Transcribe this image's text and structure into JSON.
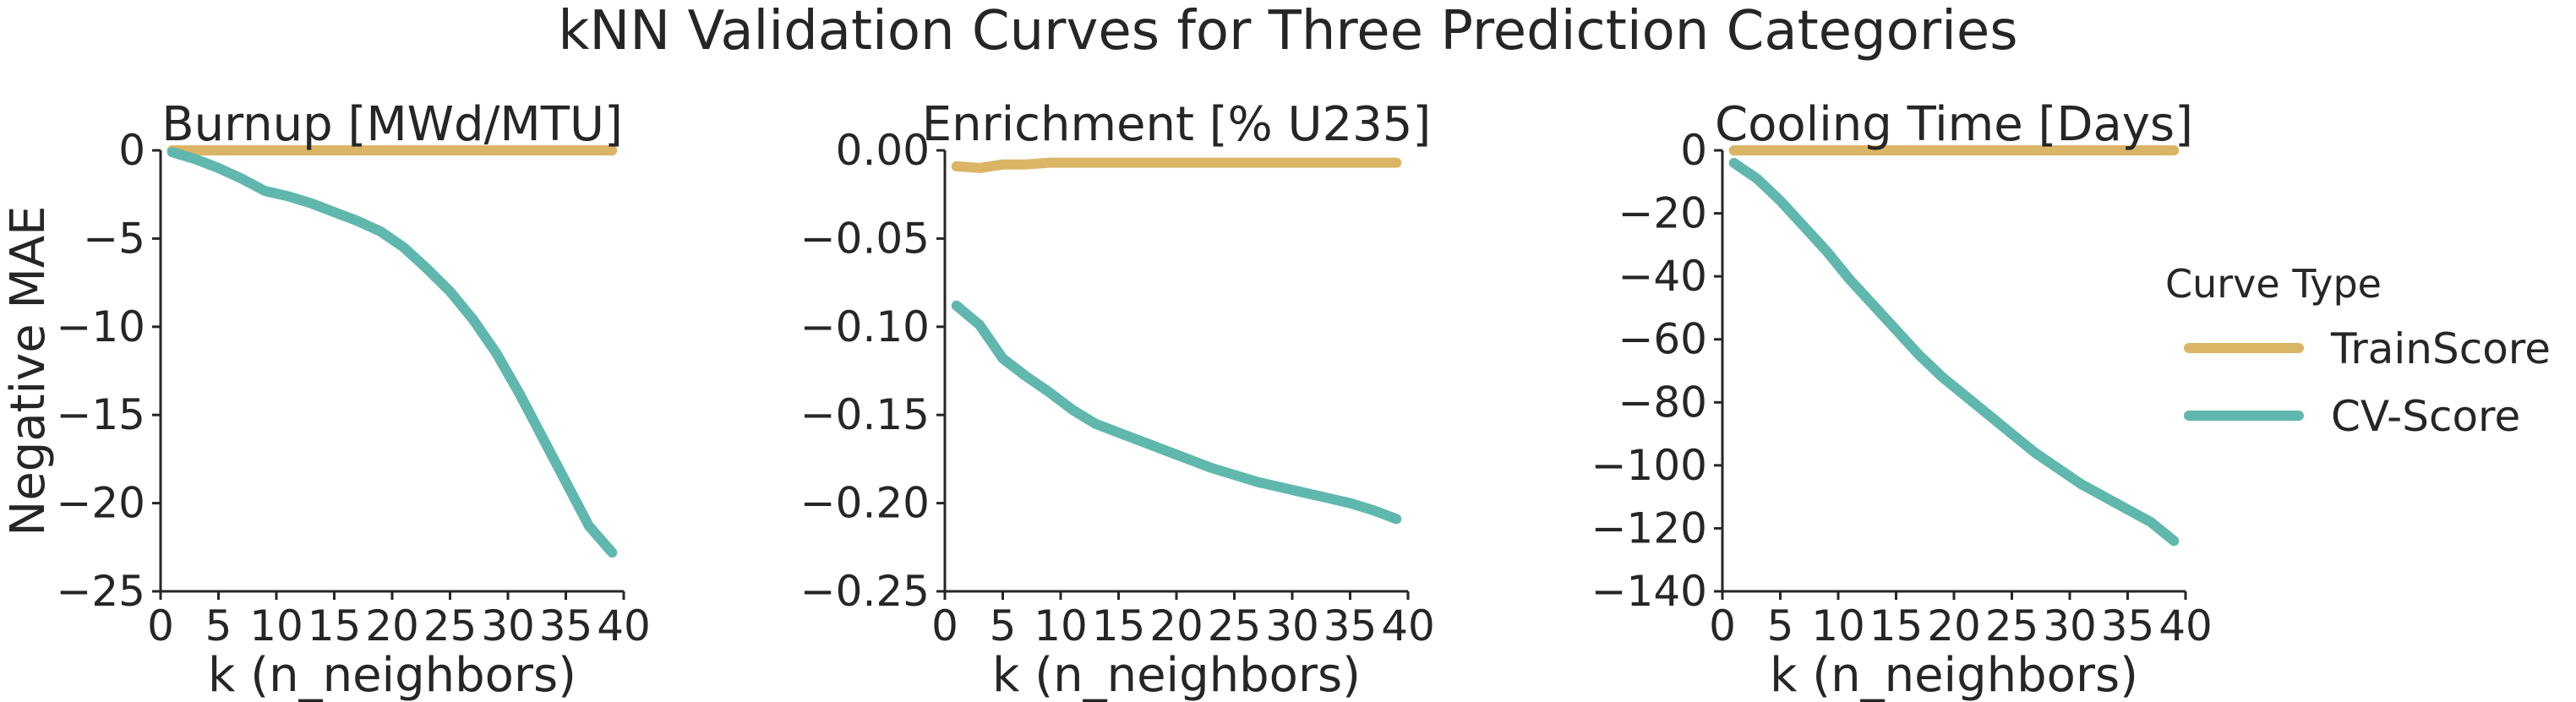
{
  "figure": {
    "title": "kNN Validation Curves for Three Prediction Categories"
  },
  "legend": {
    "title": "Curve Type",
    "items": [
      {
        "label": "TrainScore",
        "color": "#dbb566"
      },
      {
        "label": "CV-Score",
        "color": "#5fb7ad"
      }
    ]
  },
  "chart_data": [
    {
      "type": "line",
      "title": "Burnup [MWd/MTU]",
      "xlabel": "k (n_neighbors)",
      "ylabel": "Negative MAE",
      "xlim": [
        0,
        40
      ],
      "ylim": [
        -25,
        0
      ],
      "xticks": [
        "0",
        "5",
        "10",
        "15",
        "20",
        "25",
        "30",
        "35",
        "40"
      ],
      "yticks": [
        "0",
        "−5",
        "−10",
        "−15",
        "−20",
        "−25"
      ],
      "x": [
        1,
        3,
        5,
        7,
        9,
        11,
        13,
        15,
        17,
        19,
        21,
        23,
        25,
        27,
        29,
        31,
        33,
        35,
        37,
        39
      ],
      "series": [
        {
          "name": "TrainScore",
          "color": "#dbb566",
          "values": [
            0,
            0,
            0,
            0,
            0,
            0,
            0,
            0,
            0,
            0,
            0,
            0,
            0,
            0,
            0,
            0,
            0,
            0,
            0,
            0
          ]
        },
        {
          "name": "CV-Score",
          "color": "#5fb7ad",
          "values": [
            -0.1,
            -0.5,
            -1.0,
            -1.6,
            -2.3,
            -2.6,
            -3.0,
            -3.5,
            -4.0,
            -4.6,
            -5.5,
            -6.7,
            -8.0,
            -9.6,
            -11.5,
            -13.8,
            -16.3,
            -18.8,
            -21.3,
            -22.8
          ]
        }
      ]
    },
    {
      "type": "line",
      "title": "Enrichment [% U235]",
      "xlabel": "k (n_neighbors)",
      "ylabel": "",
      "xlim": [
        0,
        40
      ],
      "ylim": [
        -0.25,
        0
      ],
      "xticks": [
        "0",
        "5",
        "10",
        "15",
        "20",
        "25",
        "30",
        "35",
        "40"
      ],
      "yticks": [
        "0.00",
        "−0.05",
        "−0.10",
        "−0.15",
        "−0.20",
        "−0.25"
      ],
      "x": [
        1,
        3,
        5,
        7,
        9,
        11,
        13,
        15,
        17,
        19,
        21,
        23,
        25,
        27,
        29,
        31,
        33,
        35,
        37,
        39
      ],
      "series": [
        {
          "name": "TrainScore",
          "color": "#dbb566",
          "values": [
            -0.009,
            -0.01,
            -0.008,
            -0.008,
            -0.007,
            -0.007,
            -0.007,
            -0.007,
            -0.007,
            -0.007,
            -0.007,
            -0.007,
            -0.007,
            -0.007,
            -0.007,
            -0.007,
            -0.007,
            -0.007,
            -0.007,
            -0.007
          ]
        },
        {
          "name": "CV-Score",
          "color": "#5fb7ad",
          "values": [
            -0.088,
            -0.099,
            -0.118,
            -0.128,
            -0.137,
            -0.147,
            -0.155,
            -0.16,
            -0.165,
            -0.17,
            -0.175,
            -0.18,
            -0.184,
            -0.188,
            -0.191,
            -0.194,
            -0.197,
            -0.2,
            -0.204,
            -0.209
          ]
        }
      ]
    },
    {
      "type": "line",
      "title": "Cooling Time [Days]",
      "xlabel": "k (n_neighbors)",
      "ylabel": "",
      "xlim": [
        0,
        40
      ],
      "ylim": [
        -140,
        0
      ],
      "xticks": [
        "0",
        "5",
        "10",
        "15",
        "20",
        "25",
        "30",
        "35",
        "40"
      ],
      "yticks": [
        "0",
        "−20",
        "−40",
        "−60",
        "−80",
        "−100",
        "−120",
        "−140"
      ],
      "x": [
        1,
        3,
        5,
        7,
        9,
        11,
        13,
        15,
        17,
        19,
        21,
        23,
        25,
        27,
        29,
        31,
        33,
        35,
        37,
        39
      ],
      "series": [
        {
          "name": "TrainScore",
          "color": "#dbb566",
          "values": [
            0,
            0,
            0,
            0,
            0,
            0,
            0,
            0,
            0,
            0,
            0,
            0,
            0,
            0,
            0,
            0,
            0,
            0,
            0,
            0
          ]
        },
        {
          "name": "CV-Score",
          "color": "#5fb7ad",
          "values": [
            -4,
            -9,
            -16,
            -24,
            -32,
            -41,
            -49,
            -57,
            -65,
            -72,
            -78,
            -84,
            -90,
            -96,
            -101,
            -106,
            -110,
            -114,
            -118,
            -124
          ]
        }
      ]
    }
  ]
}
